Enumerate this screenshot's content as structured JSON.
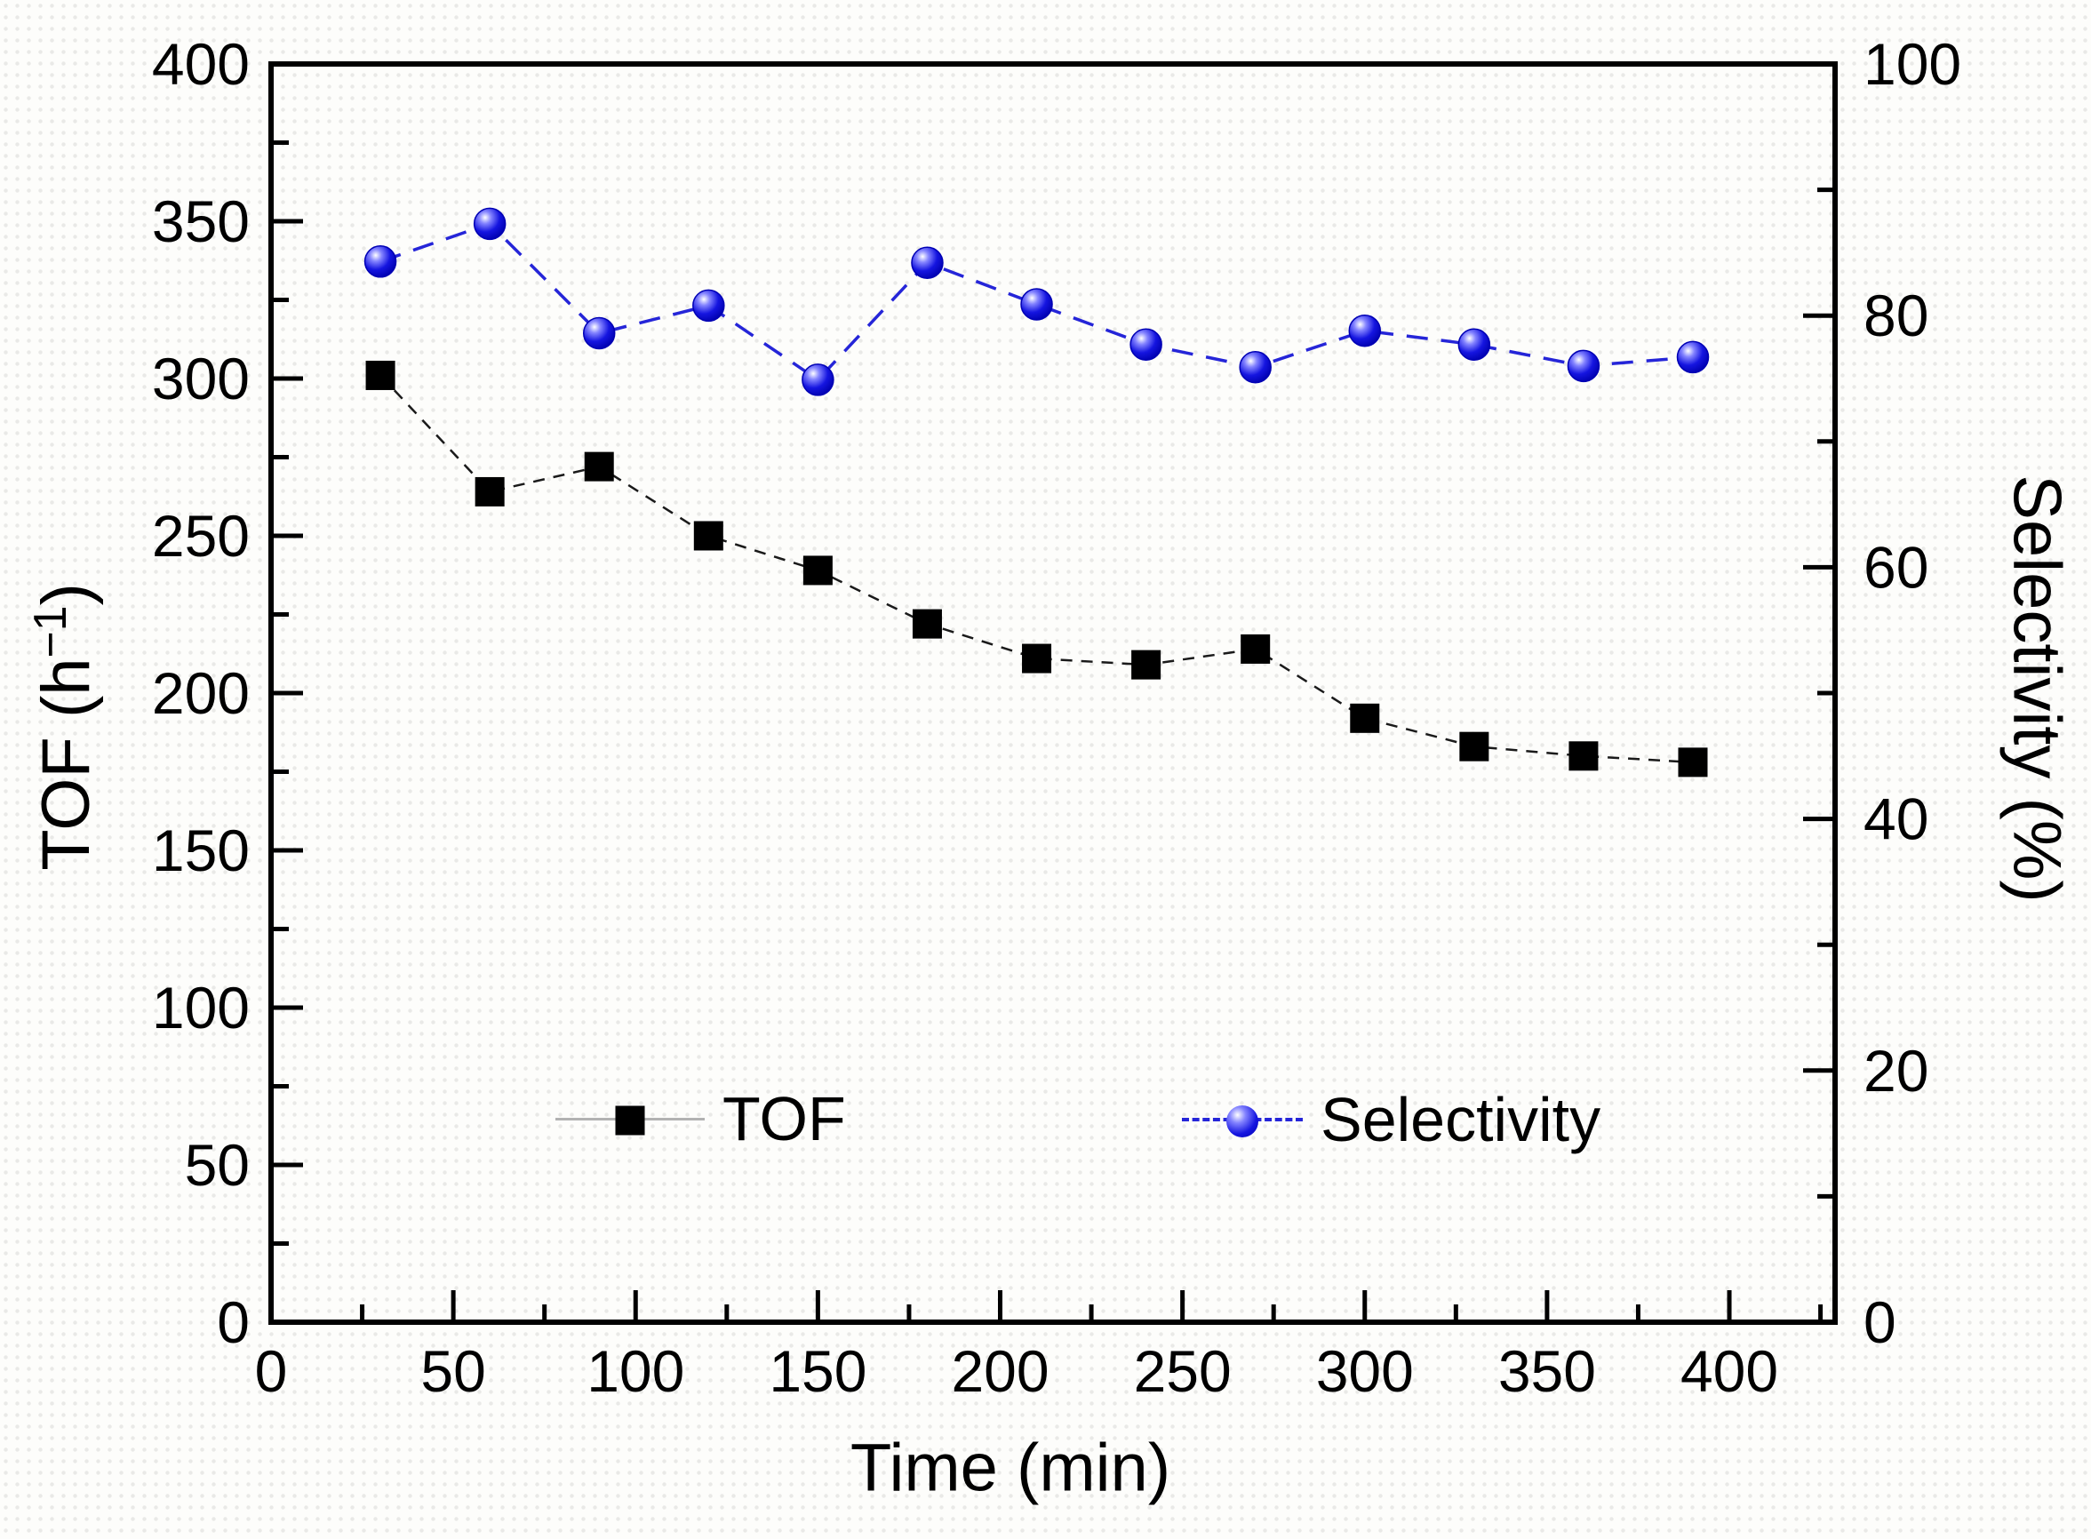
{
  "axes": {
    "x_title": "Time (min)",
    "y_left_title_parts": {
      "prefix": "TOF (h",
      "superscript": "−1",
      "suffix": ")"
    },
    "y_right_title": "Selectivity (%)"
  },
  "legend": {
    "tof_label": "TOF",
    "selectivity_label": "Selectivity"
  },
  "colors": {
    "tof_series": "#1a1a1a",
    "selectivity_series": "#2525d8",
    "selectivity_marker_core": "#1515e0",
    "axis": "#000000"
  },
  "chart_data": {
    "type": "line",
    "x": [
      30,
      60,
      90,
      120,
      150,
      180,
      210,
      240,
      270,
      300,
      330,
      360,
      390
    ],
    "series": [
      {
        "name": "TOF",
        "axis": "left",
        "marker": "square",
        "line_style": "dashed",
        "values": [
          301,
          264,
          272,
          250,
          239,
          222,
          211,
          209,
          214,
          192,
          183,
          180,
          178
        ]
      },
      {
        "name": "Selectivity",
        "axis": "right",
        "marker": "sphere",
        "line_style": "dashed",
        "values": [
          84.3,
          87.3,
          78.6,
          80.8,
          74.9,
          84.2,
          80.9,
          77.7,
          75.9,
          78.8,
          77.7,
          76.0,
          76.7
        ]
      }
    ],
    "xlabel": "Time (min)",
    "ylabel_left": "TOF (h⁻¹)",
    "ylabel_right": "Selectivity (%)",
    "xlim": [
      0,
      429
    ],
    "ylim_left": [
      0,
      400
    ],
    "ylim_right": [
      0,
      100
    ],
    "x_ticks": [
      0,
      50,
      100,
      150,
      200,
      250,
      300,
      350,
      400
    ],
    "x_minor_step": 25,
    "y_left_ticks": [
      0,
      50,
      100,
      150,
      200,
      250,
      300,
      350,
      400
    ],
    "y_left_minor_step": 25,
    "y_right_ticks": [
      0,
      20,
      40,
      60,
      80,
      100
    ],
    "y_right_minor_step": 10,
    "grid": false,
    "legend_position": "inside-bottom-center"
  }
}
